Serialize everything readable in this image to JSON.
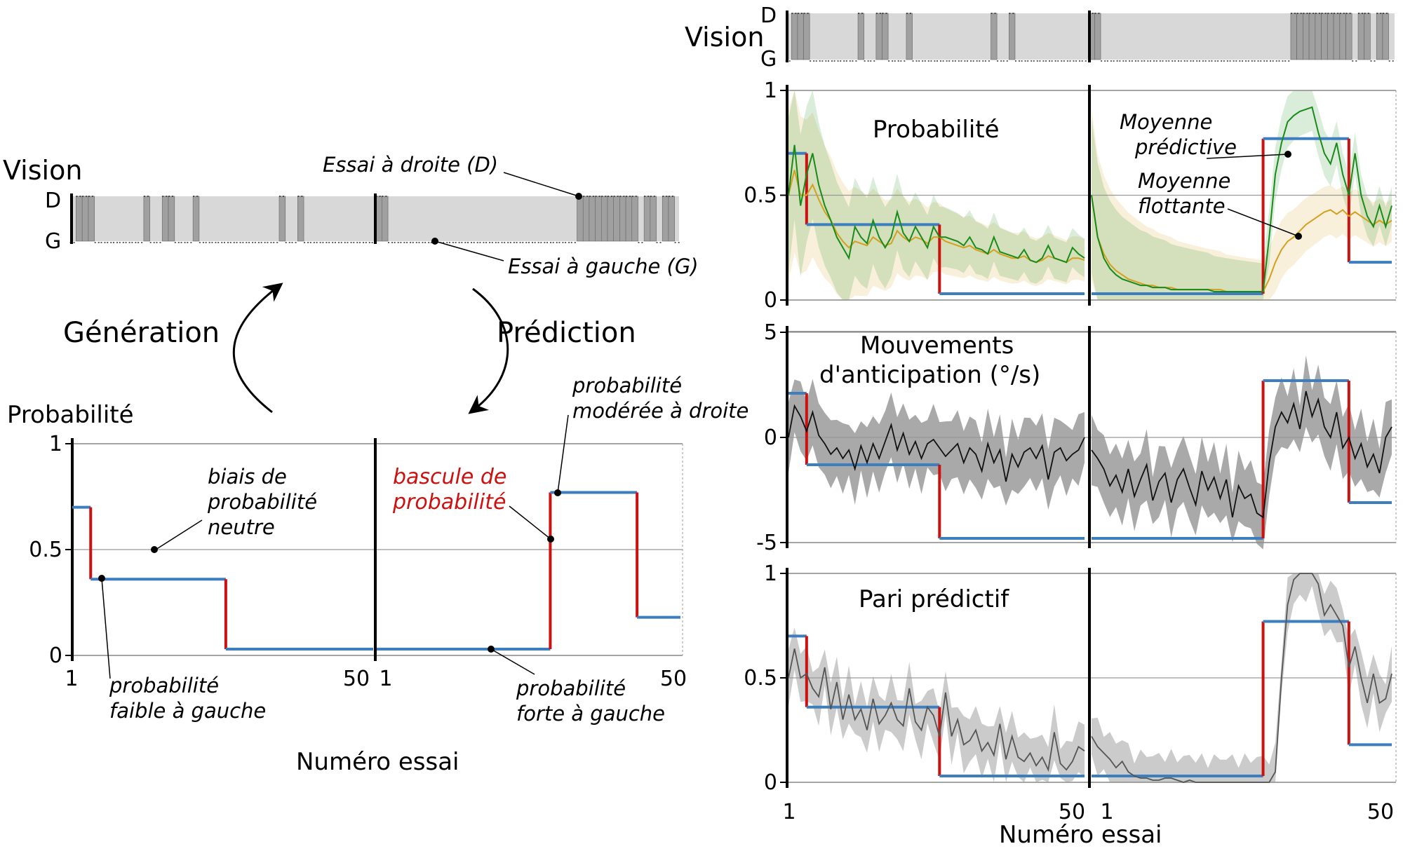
{
  "left": {
    "vision_label": "Vision",
    "d_label": "D",
    "g_label": "G",
    "essai_droite": "Essai à droite (D)",
    "essai_gauche": "Essai à gauche (G)",
    "generation": "Génération",
    "prediction": "Prédiction",
    "prob_axis_label": "Probabilité",
    "biais_1": "biais de",
    "biais_2": "probabilité",
    "biais_3": "neutre",
    "bascule_1": "bascule de",
    "bascule_2": "probabilité",
    "moderee_1": "probabilité",
    "moderee_2": "modérée à droite",
    "faible_1": "probabilité",
    "faible_2": "faible à gauche",
    "forte_1": "probabilité",
    "forte_2": "forte à gauche",
    "xlabel": "Numéro essai"
  },
  "right": {
    "vision_label": "Vision",
    "d_label": "D",
    "g_label": "G",
    "p1_title": "Probabilité",
    "moyenne_pred_1": "Moyenne",
    "moyenne_pred_2": "prédictive",
    "moyenne_flot_1": "Moyenne",
    "moyenne_flot_2": "flottante",
    "p2_title_1": "Mouvements",
    "p2_title_2": "d'anticipation (°/s)",
    "p3_title": "Pari prédictif",
    "xlabel": "Numéro essai"
  },
  "colors": {
    "blue": "#3d7ebf",
    "red": "#cc1111",
    "green": "#1a8a1a",
    "orange": "#d4a020",
    "light_gray": "#d8d8d8",
    "dark_gray": "#a0a0a0"
  },
  "chart_data": [
    {
      "type": "line",
      "name": "schematic_probability",
      "yticks": [
        "0",
        "0.5",
        "1"
      ],
      "xticks": [
        "1",
        "50",
        "1",
        "50"
      ],
      "ylim": [
        0,
        1
      ],
      "blocks": 2,
      "trials_per_block": 50,
      "step_probability": [
        {
          "from": 1,
          "to": 4,
          "p": 0.7
        },
        {
          "from": 4,
          "to": 26,
          "p": 0.36
        },
        {
          "from": 26,
          "to": 50,
          "p": 0.03
        },
        {
          "from": 51,
          "to": 79,
          "p": 0.03
        },
        {
          "from": 79,
          "to": 93,
          "p": 0.77
        },
        {
          "from": 93,
          "to": 100,
          "p": 0.18
        }
      ],
      "vision_right_trials": [
        2,
        3,
        4,
        13,
        16,
        17,
        21,
        35,
        38,
        51,
        52,
        84,
        85,
        86,
        87,
        88,
        89,
        90,
        91,
        92,
        93,
        95,
        96,
        98,
        99
      ]
    },
    {
      "type": "area",
      "name": "probability_estimates",
      "ylim": [
        0,
        1
      ],
      "yticks": [
        "0",
        "0.5",
        "1"
      ],
      "step_probability": [
        {
          "from": 1,
          "to": 4,
          "p": 0.7
        },
        {
          "from": 4,
          "to": 26,
          "p": 0.36
        },
        {
          "from": 26,
          "to": 50,
          "p": 0.03
        },
        {
          "from": 51,
          "to": 79,
          "p": 0.03
        },
        {
          "from": 79,
          "to": 93,
          "p": 0.77
        },
        {
          "from": 93,
          "to": 100,
          "p": 0.18
        }
      ],
      "series": [
        {
          "values": [
            0.5,
            0.74,
            0.45,
            0.6,
            0.7,
            0.55,
            0.45,
            0.38,
            0.3,
            0.25,
            0.2,
            0.35,
            0.3,
            0.27,
            0.38,
            0.3,
            0.25,
            0.3,
            0.42,
            0.32,
            0.28,
            0.35,
            0.3,
            0.25,
            0.35,
            0.3,
            0.3,
            0.29,
            0.28,
            0.26,
            0.3,
            0.25,
            0.24,
            0.22,
            0.3,
            0.23,
            0.22,
            0.21,
            0.2,
            0.24,
            0.19,
            0.18,
            0.2,
            0.26,
            0.2,
            0.19,
            0.18,
            0.25,
            0.22,
            0.2,
            0.5,
            0.3,
            0.2,
            0.15,
            0.12,
            0.1,
            0.09,
            0.08,
            0.07,
            0.07,
            0.06,
            0.06,
            0.06,
            0.05,
            0.05,
            0.05,
            0.05,
            0.05,
            0.05,
            0.05,
            0.04,
            0.04,
            0.04,
            0.04,
            0.04,
            0.04,
            0.04,
            0.04,
            0.04,
            0.3,
            0.6,
            0.75,
            0.85,
            0.88,
            0.9,
            0.91,
            0.92,
            0.8,
            0.7,
            0.65,
            0.75,
            0.6,
            0.5,
            0.7,
            0.5,
            0.4,
            0.35,
            0.45,
            0.35,
            0.45
          ]
        },
        {
          "values": [
            0.5,
            0.62,
            0.5,
            0.5,
            0.55,
            0.48,
            0.42,
            0.38,
            0.32,
            0.28,
            0.25,
            0.28,
            0.27,
            0.26,
            0.3,
            0.28,
            0.26,
            0.27,
            0.33,
            0.3,
            0.28,
            0.3,
            0.29,
            0.27,
            0.3,
            0.3,
            0.28,
            0.27,
            0.26,
            0.25,
            0.26,
            0.24,
            0.23,
            0.22,
            0.24,
            0.22,
            0.21,
            0.2,
            0.2,
            0.21,
            0.19,
            0.18,
            0.19,
            0.21,
            0.2,
            0.19,
            0.18,
            0.2,
            0.2,
            0.19,
            0.5,
            0.3,
            0.22,
            0.17,
            0.14,
            0.12,
            0.1,
            0.09,
            0.08,
            0.07,
            0.07,
            0.06,
            0.06,
            0.06,
            0.05,
            0.05,
            0.05,
            0.05,
            0.05,
            0.05,
            0.05,
            0.05,
            0.04,
            0.04,
            0.04,
            0.04,
            0.04,
            0.04,
            0.04,
            0.1,
            0.18,
            0.24,
            0.28,
            0.3,
            0.33,
            0.36,
            0.38,
            0.4,
            0.42,
            0.43,
            0.41,
            0.43,
            0.4,
            0.42,
            0.4,
            0.38,
            0.36,
            0.38,
            0.36,
            0.38
          ]
        }
      ]
    },
    {
      "type": "area",
      "name": "anticipatory_movements",
      "ylim": [
        -5.5,
        5.5
      ],
      "yticks": [
        "-5",
        "0",
        "5"
      ],
      "step_values": [
        {
          "from": 1,
          "to": 4,
          "v": 2.1
        },
        {
          "from": 4,
          "to": 26,
          "v": -1.3
        },
        {
          "from": 26,
          "to": 50,
          "v": -4.8
        },
        {
          "from": 51,
          "to": 79,
          "v": -4.8
        },
        {
          "from": 79,
          "to": 93,
          "v": 2.7
        },
        {
          "from": 93,
          "to": 100,
          "v": -3.1
        }
      ],
      "values": [
        0.0,
        1.5,
        1.0,
        0.3,
        1.2,
        0.1,
        -0.3,
        -0.8,
        -0.5,
        -1.0,
        -0.6,
        -1.5,
        -0.4,
        -1.2,
        -0.3,
        -1.0,
        -0.2,
        0.6,
        -0.6,
        0.2,
        -0.8,
        -0.2,
        -1.0,
        -0.3,
        -0.1,
        -0.5,
        -0.9,
        -0.6,
        -0.3,
        -1.2,
        -0.5,
        -0.8,
        -1.6,
        -0.3,
        -1.2,
        -0.6,
        -2.1,
        -0.8,
        -1.4,
        -0.7,
        -0.5,
        -1.0,
        -0.4,
        -2.0,
        -0.7,
        -0.5,
        -1.1,
        -0.8,
        -0.6,
        0.0,
        -0.6,
        -1.0,
        -1.5,
        -2.3,
        -1.8,
        -2.6,
        -1.5,
        -2.8,
        -2.0,
        -1.3,
        -3.0,
        -2.1,
        -1.7,
        -3.1,
        -2.0,
        -1.5,
        -2.4,
        -3.2,
        -1.6,
        -2.5,
        -1.9,
        -2.9,
        -2.0,
        -3.8,
        -2.3,
        -2.9,
        -2.7,
        -3.6,
        -3.8,
        -1.2,
        0.5,
        1.2,
        0.7,
        1.6,
        0.4,
        2.2,
        1.0,
        1.8,
        0.5,
        0.0,
        1.2,
        -0.5,
        0.0,
        -1.0,
        -0.3,
        -1.4,
        -0.8,
        -1.7,
        0.0,
        0.5
      ]
    },
    {
      "type": "area",
      "name": "predictive_bet",
      "ylim": [
        0,
        1
      ],
      "yticks": [
        "0",
        "0.5",
        "1"
      ],
      "step_probability": [
        {
          "from": 1,
          "to": 4,
          "p": 0.7
        },
        {
          "from": 4,
          "to": 26,
          "p": 0.36
        },
        {
          "from": 26,
          "to": 50,
          "p": 0.03
        },
        {
          "from": 51,
          "to": 79,
          "p": 0.03
        },
        {
          "from": 79,
          "to": 93,
          "p": 0.77
        },
        {
          "from": 93,
          "to": 100,
          "p": 0.18
        }
      ],
      "values": [
        0.5,
        0.64,
        0.5,
        0.52,
        0.45,
        0.41,
        0.55,
        0.35,
        0.48,
        0.3,
        0.42,
        0.3,
        0.35,
        0.25,
        0.4,
        0.28,
        0.32,
        0.38,
        0.3,
        0.27,
        0.45,
        0.29,
        0.25,
        0.36,
        0.32,
        0.22,
        0.43,
        0.22,
        0.3,
        0.18,
        0.2,
        0.25,
        0.15,
        0.19,
        0.13,
        0.28,
        0.11,
        0.22,
        0.12,
        0.1,
        0.14,
        0.08,
        0.12,
        0.06,
        0.24,
        0.09,
        0.06,
        0.1,
        0.17,
        0.15,
        0.22,
        0.17,
        0.14,
        0.11,
        0.07,
        0.1,
        0.05,
        0.03,
        0.02,
        0.02,
        0.01,
        0.01,
        0.02,
        0.02,
        0.01,
        0.0,
        0.01,
        0.0,
        0.0,
        0.0,
        0.0,
        0.0,
        0.0,
        0.0,
        0.0,
        0.0,
        0.0,
        0.0,
        0.0,
        0.0,
        0.05,
        0.5,
        0.85,
        0.97,
        1.0,
        1.0,
        1.0,
        0.95,
        0.8,
        0.85,
        0.8,
        0.75,
        0.55,
        0.65,
        0.5,
        0.38,
        0.52,
        0.38,
        0.4,
        0.52
      ]
    }
  ]
}
